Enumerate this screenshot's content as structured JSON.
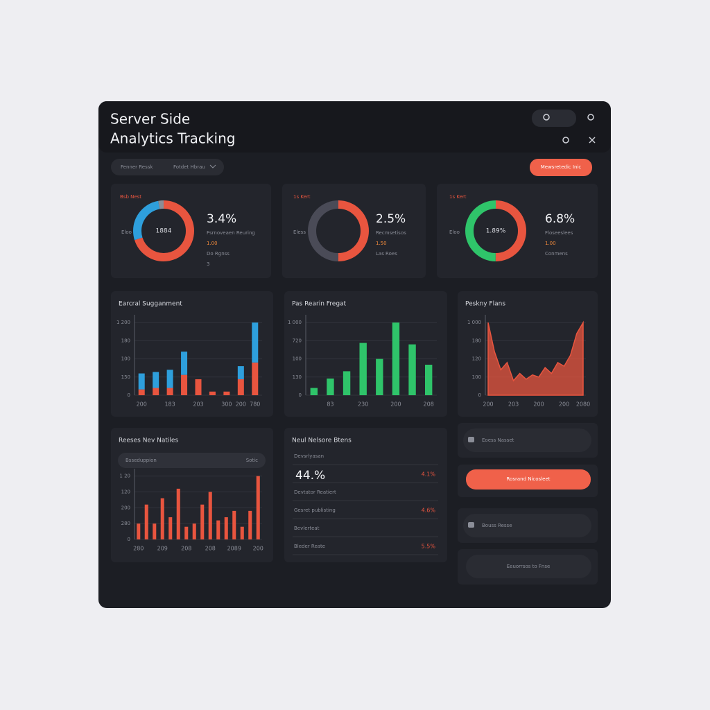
{
  "header": {
    "title_lines": [
      "Server Side",
      "Analytics Tracking"
    ]
  },
  "toolbar": {
    "filters": [
      "Fenner Ressk",
      "Fotdet Hbrau"
    ],
    "button": "Mewsretedic Inic"
  },
  "chart_data": [
    {
      "type": "donut",
      "label": "Bsb Nest",
      "side_label": "Eloo",
      "center": "1884",
      "value_text": "3.4%",
      "lines": [
        "Fsrnoveaen Reuring",
        "1.00",
        "Do Rgnss",
        "3"
      ],
      "values": [
        70,
        27,
        3
      ],
      "colors": [
        "#e8553f",
        "#2e9fdc",
        "#8a8d96"
      ]
    },
    {
      "type": "donut",
      "label": "1s Kert",
      "side_label": "Eless",
      "value_text": "2.5%",
      "lines": [
        "Recmsetisos",
        "1.50",
        "Las Roes"
      ],
      "values": [
        50,
        50
      ],
      "colors": [
        "#e8553f",
        "#4a4b57"
      ]
    },
    {
      "type": "donut",
      "label": "1s Kert",
      "side_label": "Eloo",
      "center": "1.89%",
      "value_text": "6.8%",
      "lines": [
        "Floseeslees",
        "1.00",
        "Conmens"
      ],
      "values": [
        50,
        50
      ],
      "colors": [
        "#e8553f",
        "#2fc46a"
      ]
    },
    {
      "type": "bar",
      "title": "Earcral Sugganment",
      "categories": [
        "200",
        null,
        "183",
        null,
        "203",
        null,
        "300",
        "200",
        "780"
      ],
      "series": [
        {
          "color": "#e8553f",
          "values": [
            8,
            10,
            10,
            28,
            22,
            5,
            5,
            22,
            45
          ]
        },
        {
          "color": "#2e9fdc",
          "values": [
            22,
            22,
            25,
            32,
            0,
            0,
            0,
            18,
            55
          ]
        }
      ],
      "ylim": [
        0,
        105
      ],
      "yticks": [
        0,
        {
          "value": 25,
          "label": "150"
        },
        {
          "value": 50,
          "label": "100"
        },
        {
          "value": 75,
          "label": "180"
        },
        {
          "value": 100,
          "label": "1 200"
        }
      ]
    },
    {
      "type": "bar",
      "title": "Pas Rearin Fregat",
      "categories": [
        null,
        "83",
        null,
        "230",
        null,
        "200",
        null,
        "208"
      ],
      "values": [
        10,
        23,
        33,
        72,
        50,
        100,
        70,
        42
      ],
      "color": "#2fc46a",
      "ylim": [
        0,
        105
      ],
      "yticks": [
        0,
        {
          "value": 25,
          "label": "130"
        },
        {
          "value": 50,
          "label": "100"
        },
        {
          "value": 75,
          "label": "720"
        },
        {
          "value": 100,
          "label": "1 000"
        }
      ]
    },
    {
      "type": "area",
      "title": "Peskny Flans",
      "categories": [
        "200",
        null,
        null,
        null,
        "203",
        null,
        null,
        null,
        "200",
        null,
        null,
        null,
        "200",
        null,
        null,
        "2080"
      ],
      "values": [
        100,
        60,
        35,
        45,
        20,
        30,
        22,
        28,
        25,
        38,
        30,
        45,
        40,
        55,
        85,
        100
      ],
      "color": "#e8553f",
      "ylim": [
        0,
        105
      ],
      "yticks": [
        0,
        {
          "value": 25,
          "label": "100"
        },
        {
          "value": 50,
          "label": "120"
        },
        {
          "value": 75,
          "label": "180"
        },
        {
          "value": 100,
          "label": "1 000"
        }
      ]
    },
    {
      "type": "bar",
      "title": "Reeses Nev Natiles",
      "dropdown": [
        "Bsseduppion",
        "Sotic"
      ],
      "categories": [
        "280",
        null,
        null,
        "209",
        null,
        null,
        "208",
        null,
        null,
        "208",
        null,
        null,
        "2089",
        null,
        null,
        "200"
      ],
      "values": [
        25,
        55,
        25,
        65,
        35,
        80,
        20,
        25,
        55,
        75,
        30,
        35,
        45,
        20,
        45,
        100
      ],
      "color": "#e8553f",
      "ylim": [
        0,
        105
      ],
      "yticks": [
        0,
        {
          "value": 25,
          "label": "280"
        },
        {
          "value": 50,
          "label": "200"
        },
        {
          "value": 75,
          "label": "120"
        },
        {
          "value": 100,
          "label": "1 20"
        }
      ]
    }
  ],
  "stats": {
    "title": "Neul Nelsore Btens",
    "rows": [
      {
        "label": "Devsrlyasan"
      },
      {
        "big": "44.%",
        "value": "4.1%"
      },
      {
        "label": "Devtator Reatiert"
      },
      {
        "label": "Gesret publisting",
        "value": "4.6%"
      },
      {
        "label": "Bevlerteat"
      },
      {
        "label": "Bleder Reate",
        "value": "5.5%"
      }
    ]
  },
  "side": {
    "item1": "Eoess Nasset",
    "button": "Rosrand Nicosleet",
    "item2": "Bouss Resse",
    "item3": "Eeuorrsos to Fnse"
  }
}
